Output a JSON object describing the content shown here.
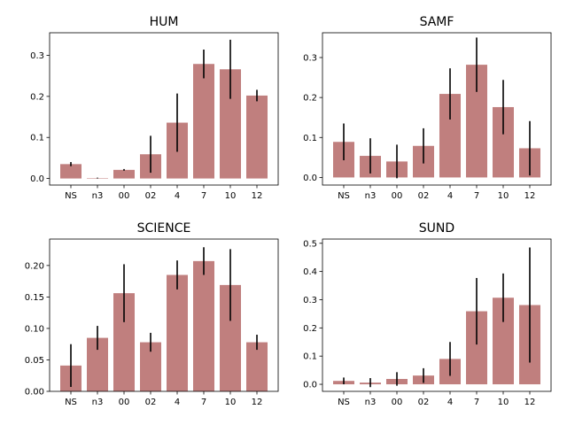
{
  "chart_data": [
    {
      "type": "bar",
      "title": "HUM",
      "categories": [
        "NS",
        "n3",
        "00",
        "02",
        "4",
        "7",
        "10",
        "12"
      ],
      "values": [
        0.035,
        0.001,
        0.021,
        0.059,
        0.136,
        0.279,
        0.266,
        0.202
      ],
      "error": [
        0.005,
        0.001,
        0.002,
        0.045,
        0.071,
        0.035,
        0.072,
        0.014
      ],
      "ylim": [
        -0.016,
        0.355
      ],
      "yticks": [
        "0.0",
        "0.1",
        "0.2",
        "0.3"
      ],
      "bar_color": "#c07f7e",
      "error_color": "#000000"
    },
    {
      "type": "bar",
      "title": "SAMF",
      "categories": [
        "NS",
        "n3",
        "00",
        "02",
        "4",
        "7",
        "10",
        "12"
      ],
      "values": [
        0.089,
        0.054,
        0.04,
        0.079,
        0.209,
        0.282,
        0.176,
        0.073
      ],
      "error": [
        0.046,
        0.044,
        0.042,
        0.044,
        0.064,
        0.068,
        0.068,
        0.068
      ],
      "ylim": [
        -0.019,
        0.362
      ],
      "yticks": [
        "0.0",
        "0.1",
        "0.2",
        "0.3"
      ],
      "bar_color": "#c07f7e",
      "error_color": "#000000"
    },
    {
      "type": "bar",
      "title": "SCIENCE",
      "categories": [
        "NS",
        "n3",
        "00",
        "02",
        "4",
        "7",
        "10",
        "12"
      ],
      "values": [
        0.041,
        0.085,
        0.156,
        0.078,
        0.185,
        0.207,
        0.169,
        0.078
      ],
      "error": [
        0.034,
        0.019,
        0.046,
        0.015,
        0.023,
        0.022,
        0.057,
        0.012
      ],
      "ylim": [
        0.0,
        0.242
      ],
      "yticks": [
        "0.00",
        "0.05",
        "0.10",
        "0.15",
        "0.20"
      ],
      "bar_color": "#c07f7e",
      "error_color": "#000000"
    },
    {
      "type": "bar",
      "title": "SUND",
      "categories": [
        "NS",
        "n3",
        "00",
        "02",
        "4",
        "7",
        "10",
        "12"
      ],
      "values": [
        0.012,
        0.006,
        0.019,
        0.031,
        0.09,
        0.259,
        0.307,
        0.281
      ],
      "error": [
        0.012,
        0.016,
        0.024,
        0.026,
        0.06,
        0.118,
        0.086,
        0.204
      ],
      "ylim": [
        -0.025,
        0.515
      ],
      "yticks": [
        "0.0",
        "0.1",
        "0.2",
        "0.3",
        "0.4",
        "0.5"
      ],
      "bar_color": "#c07f7e",
      "error_color": "#000000"
    }
  ]
}
